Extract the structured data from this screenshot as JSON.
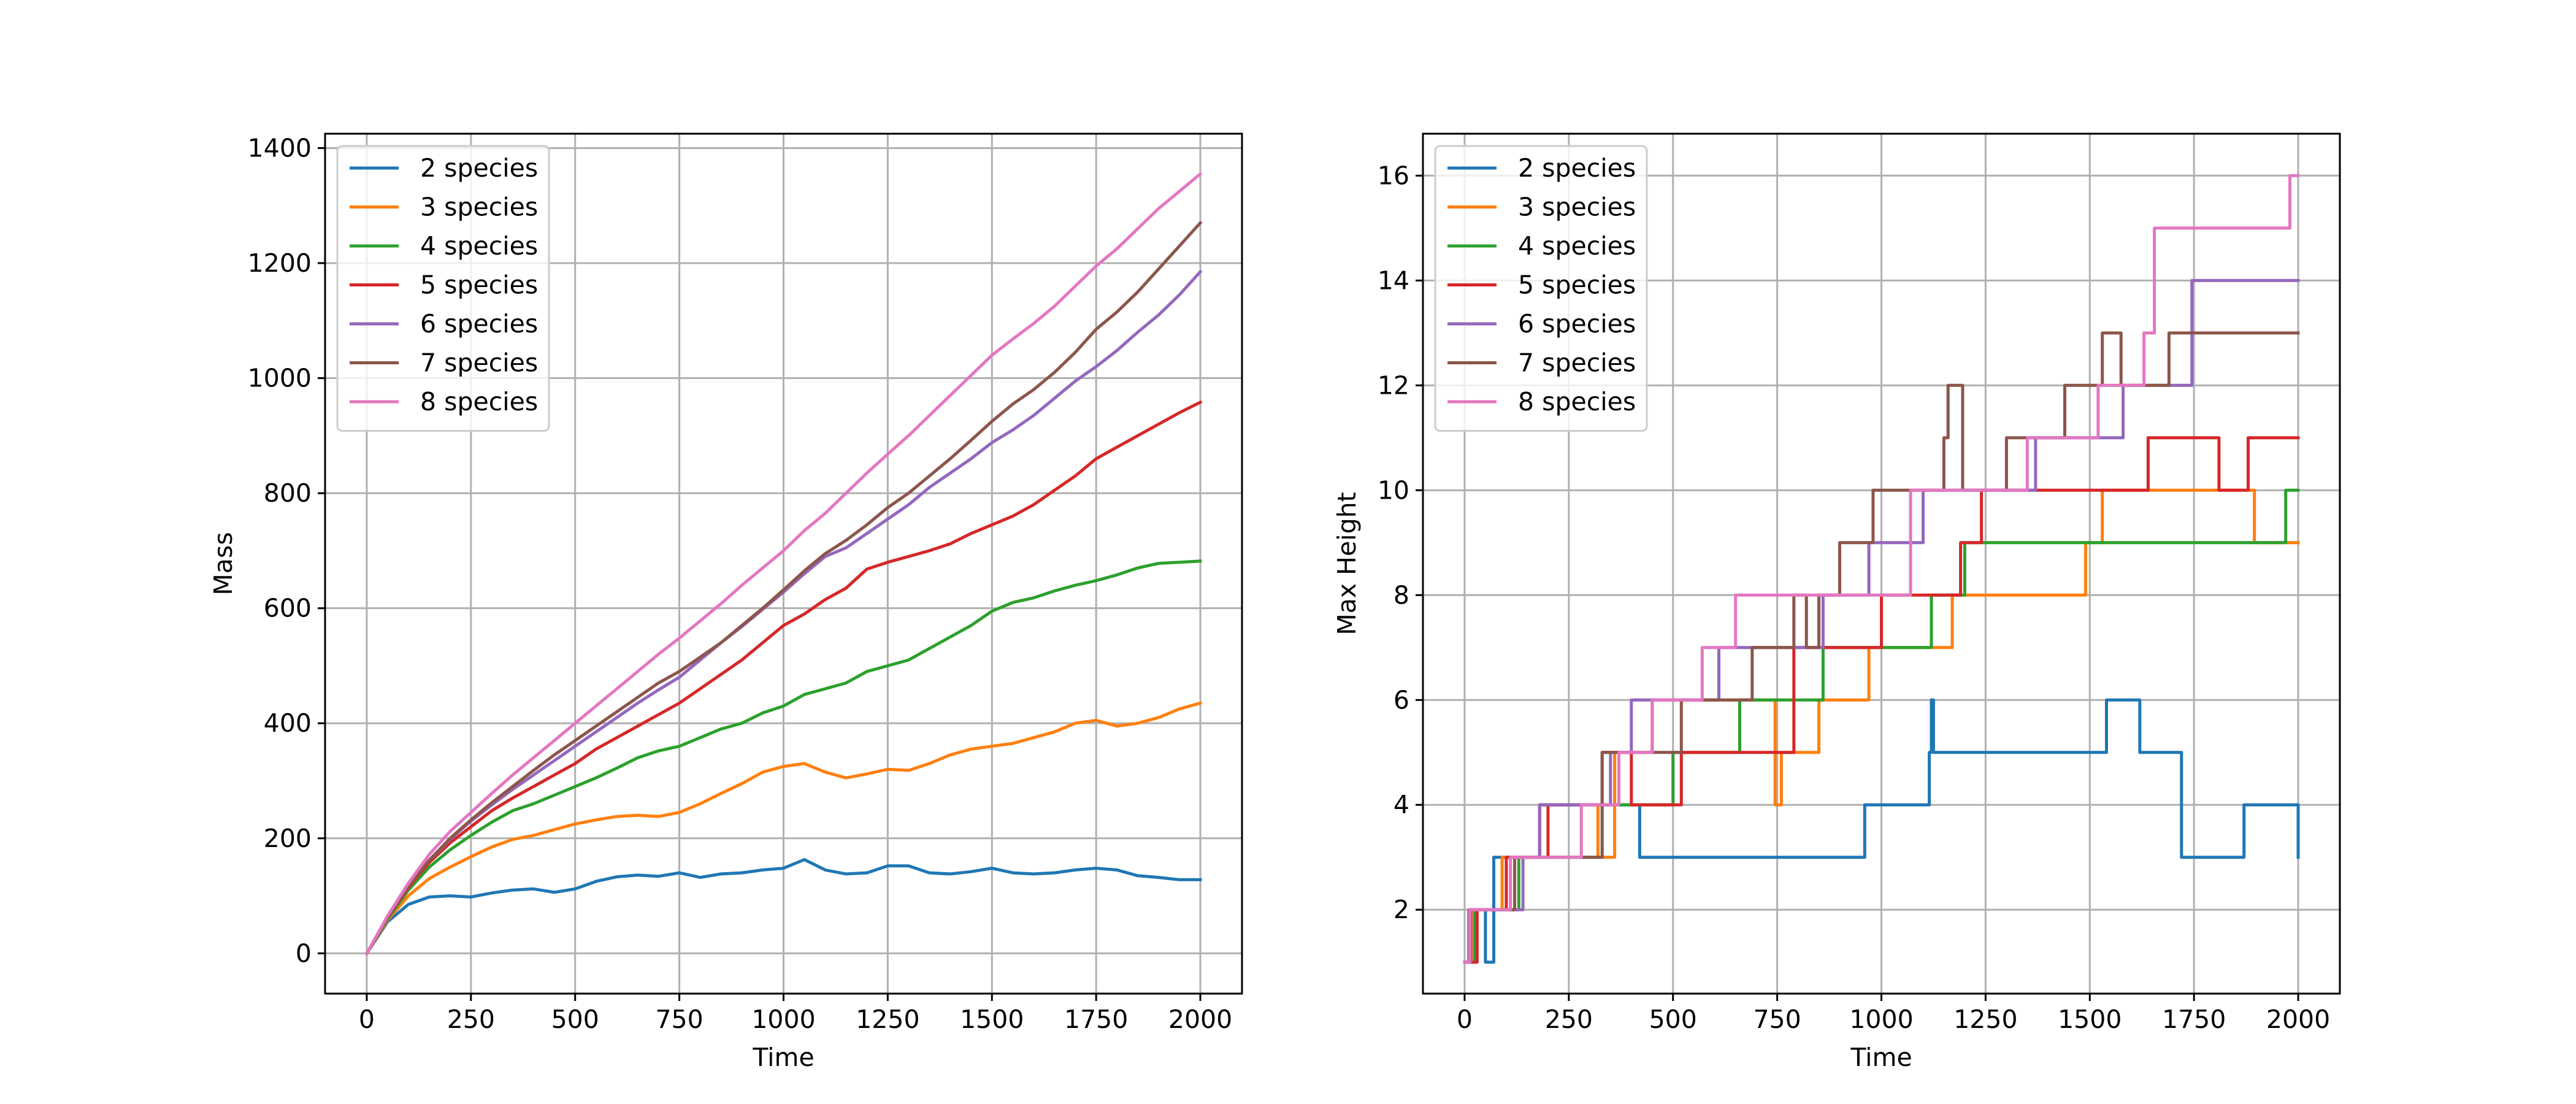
{
  "chart_data": [
    {
      "type": "line",
      "title": "",
      "xlabel": "Time",
      "ylabel": "Mass",
      "xlim": [
        -100,
        2100
      ],
      "ylim": [
        -70,
        1425
      ],
      "xticks": [
        0,
        250,
        500,
        750,
        1000,
        1250,
        1500,
        1750,
        2000
      ],
      "yticks": [
        0,
        200,
        400,
        600,
        800,
        1000,
        1200,
        1400
      ],
      "grid": true,
      "legend": "upper left",
      "series": [
        {
          "name": "2 species",
          "color": "#1f77b4",
          "x": [
            0,
            50,
            100,
            150,
            200,
            250,
            300,
            350,
            400,
            450,
            500,
            550,
            600,
            650,
            700,
            750,
            800,
            850,
            900,
            950,
            1000,
            1050,
            1100,
            1150,
            1200,
            1250,
            1300,
            1350,
            1400,
            1450,
            1500,
            1550,
            1600,
            1650,
            1700,
            1750,
            1800,
            1850,
            1900,
            1950,
            2000
          ],
          "y": [
            0,
            55,
            85,
            98,
            100,
            98,
            105,
            110,
            112,
            106,
            112,
            125,
            133,
            136,
            134,
            140,
            132,
            138,
            140,
            145,
            148,
            163,
            145,
            138,
            140,
            152,
            152,
            140,
            138,
            142,
            148,
            140,
            138,
            140,
            145,
            148,
            145,
            135,
            132,
            128,
            128
          ]
        },
        {
          "name": "3 species",
          "color": "#ff7f0e",
          "x": [
            0,
            50,
            100,
            150,
            200,
            250,
            300,
            350,
            400,
            450,
            500,
            550,
            600,
            650,
            700,
            750,
            800,
            850,
            900,
            950,
            1000,
            1050,
            1100,
            1150,
            1200,
            1250,
            1300,
            1350,
            1400,
            1450,
            1500,
            1550,
            1600,
            1650,
            1700,
            1750,
            1800,
            1850,
            1900,
            1950,
            2000
          ],
          "y": [
            0,
            58,
            100,
            130,
            150,
            168,
            185,
            198,
            205,
            215,
            225,
            232,
            238,
            240,
            238,
            245,
            260,
            278,
            295,
            315,
            325,
            330,
            315,
            305,
            312,
            320,
            318,
            330,
            345,
            355,
            360,
            365,
            375,
            385,
            400,
            405,
            395,
            400,
            410,
            425,
            435
          ]
        },
        {
          "name": "4 species",
          "color": "#2ca02c",
          "x": [
            0,
            50,
            100,
            150,
            200,
            250,
            300,
            350,
            400,
            450,
            500,
            550,
            600,
            650,
            700,
            750,
            800,
            850,
            900,
            950,
            1000,
            1050,
            1100,
            1150,
            1200,
            1250,
            1300,
            1350,
            1400,
            1450,
            1500,
            1550,
            1600,
            1650,
            1700,
            1750,
            1800,
            1850,
            1900,
            1950,
            2000
          ],
          "y": [
            0,
            60,
            110,
            150,
            180,
            205,
            228,
            248,
            260,
            275,
            290,
            305,
            322,
            340,
            352,
            360,
            375,
            390,
            400,
            418,
            430,
            450,
            460,
            470,
            490,
            500,
            510,
            530,
            550,
            570,
            595,
            610,
            618,
            630,
            640,
            648,
            658,
            670,
            678,
            680,
            682
          ]
        },
        {
          "name": "5 species",
          "color": "#d62728",
          "x": [
            0,
            50,
            100,
            150,
            200,
            250,
            300,
            350,
            400,
            450,
            500,
            550,
            600,
            650,
            700,
            750,
            800,
            850,
            900,
            950,
            1000,
            1050,
            1100,
            1150,
            1200,
            1250,
            1300,
            1350,
            1400,
            1450,
            1500,
            1550,
            1600,
            1650,
            1700,
            1750,
            1800,
            1850,
            1900,
            1950,
            2000
          ],
          "y": [
            0,
            62,
            115,
            158,
            192,
            220,
            248,
            270,
            290,
            310,
            330,
            355,
            375,
            395,
            415,
            435,
            460,
            485,
            510,
            540,
            570,
            590,
            615,
            635,
            668,
            680,
            690,
            700,
            712,
            730,
            745,
            760,
            780,
            805,
            830,
            860,
            880,
            900,
            920,
            940,
            958
          ]
        },
        {
          "name": "6 species",
          "color": "#9467bd",
          "x": [
            0,
            50,
            100,
            150,
            200,
            250,
            300,
            350,
            400,
            450,
            500,
            550,
            600,
            650,
            700,
            750,
            800,
            850,
            900,
            950,
            1000,
            1050,
            1100,
            1150,
            1200,
            1250,
            1300,
            1350,
            1400,
            1450,
            1500,
            1550,
            1600,
            1650,
            1700,
            1750,
            1800,
            1850,
            1900,
            1950,
            2000
          ],
          "y": [
            0,
            63,
            118,
            162,
            198,
            230,
            258,
            285,
            310,
            335,
            360,
            385,
            410,
            435,
            458,
            480,
            510,
            540,
            568,
            598,
            628,
            660,
            690,
            705,
            730,
            755,
            780,
            810,
            835,
            860,
            888,
            910,
            935,
            965,
            995,
            1020,
            1048,
            1080,
            1110,
            1145,
            1185
          ]
        },
        {
          "name": "7 species",
          "color": "#8c564b",
          "x": [
            0,
            50,
            100,
            150,
            200,
            250,
            300,
            350,
            400,
            450,
            500,
            550,
            600,
            650,
            700,
            750,
            800,
            850,
            900,
            950,
            1000,
            1050,
            1100,
            1150,
            1200,
            1250,
            1300,
            1350,
            1400,
            1450,
            1500,
            1550,
            1600,
            1650,
            1700,
            1750,
            1800,
            1850,
            1900,
            1950,
            2000
          ],
          "y": [
            0,
            63,
            118,
            162,
            200,
            232,
            262,
            290,
            318,
            345,
            370,
            395,
            420,
            445,
            470,
            490,
            515,
            540,
            570,
            600,
            632,
            665,
            695,
            718,
            745,
            775,
            800,
            830,
            860,
            892,
            925,
            955,
            980,
            1010,
            1045,
            1085,
            1115,
            1150,
            1190,
            1230,
            1270
          ]
        },
        {
          "name": "8 species",
          "color": "#e377c2",
          "x": [
            0,
            50,
            100,
            150,
            200,
            250,
            300,
            350,
            400,
            450,
            500,
            550,
            600,
            650,
            700,
            750,
            800,
            850,
            900,
            950,
            1000,
            1050,
            1100,
            1150,
            1200,
            1250,
            1300,
            1350,
            1400,
            1450,
            1500,
            1550,
            1600,
            1650,
            1700,
            1750,
            1800,
            1850,
            1900,
            1950,
            2000
          ],
          "y": [
            0,
            65,
            122,
            172,
            212,
            245,
            278,
            310,
            340,
            370,
            400,
            430,
            460,
            490,
            520,
            548,
            578,
            608,
            640,
            670,
            700,
            735,
            765,
            800,
            835,
            868,
            900,
            935,
            970,
            1005,
            1040,
            1068,
            1095,
            1125,
            1160,
            1195,
            1225,
            1260,
            1295,
            1325,
            1355
          ]
        }
      ]
    },
    {
      "type": "line",
      "title": "",
      "xlabel": "Time",
      "ylabel": "Max Height",
      "xlim": [
        -100,
        2100
      ],
      "ylim": [
        0.4,
        16.8
      ],
      "xticks": [
        0,
        250,
        500,
        750,
        1000,
        1250,
        1500,
        1750,
        2000
      ],
      "yticks": [
        2,
        4,
        6,
        8,
        10,
        12,
        14,
        16
      ],
      "grid": true,
      "legend": "upper left",
      "step": true,
      "series": [
        {
          "name": "2 species",
          "color": "#1f77b4",
          "x": [
            0,
            30,
            50,
            70,
            170,
            180,
            330,
            420,
            590,
            850,
            960,
            1115,
            1120,
            1125,
            1300,
            1540,
            1620,
            1720,
            1870,
            2000
          ],
          "y": [
            1,
            2,
            1,
            3,
            3,
            4,
            4,
            3,
            3,
            3,
            4,
            5,
            6,
            5,
            5,
            6,
            5,
            3,
            4,
            3
          ]
        },
        {
          "name": "3 species",
          "color": "#ff7f0e",
          "x": [
            0,
            20,
            60,
            90,
            160,
            180,
            290,
            320,
            360,
            450,
            670,
            745,
            760,
            850,
            970,
            1170,
            1300,
            1490,
            1530,
            1895,
            2000
          ],
          "y": [
            1,
            2,
            2,
            3,
            3,
            4,
            4,
            3,
            5,
            6,
            6,
            4,
            5,
            6,
            7,
            8,
            8,
            9,
            10,
            9,
            9
          ]
        },
        {
          "name": "4 species",
          "color": "#2ca02c",
          "x": [
            0,
            25,
            80,
            130,
            160,
            200,
            300,
            330,
            370,
            500,
            660,
            770,
            860,
            1000,
            1120,
            1200,
            1280,
            1430,
            1880,
            1970,
            2000
          ],
          "y": [
            1,
            2,
            2,
            3,
            3,
            3,
            3,
            4,
            4,
            5,
            6,
            6,
            7,
            7,
            8,
            9,
            9,
            9,
            9,
            10,
            10
          ]
        },
        {
          "name": "5 species",
          "color": "#d62728",
          "x": [
            0,
            30,
            100,
            170,
            200,
            260,
            330,
            400,
            520,
            660,
            790,
            1000,
            1190,
            1240,
            1390,
            1640,
            1810,
            1880,
            2000
          ],
          "y": [
            1,
            2,
            3,
            3,
            4,
            4,
            5,
            4,
            5,
            5,
            7,
            8,
            9,
            10,
            10,
            11,
            10,
            11,
            11
          ]
        },
        {
          "name": "6 species",
          "color": "#9467bd",
          "x": [
            0,
            15,
            80,
            140,
            180,
            230,
            350,
            400,
            460,
            610,
            720,
            860,
            970,
            1100,
            1180,
            1220,
            1370,
            1580,
            1745,
            2000
          ],
          "y": [
            1,
            2,
            2,
            3,
            4,
            4,
            5,
            6,
            6,
            7,
            7,
            8,
            9,
            10,
            10,
            10,
            11,
            12,
            14,
            14
          ]
        },
        {
          "name": "7 species",
          "color": "#8c564b",
          "x": [
            0,
            10,
            85,
            120,
            170,
            250,
            305,
            330,
            380,
            520,
            690,
            780,
            790,
            820,
            850,
            900,
            980,
            1150,
            1160,
            1195,
            1300,
            1440,
            1530,
            1575,
            1690,
            2000
          ],
          "y": [
            1,
            2,
            2,
            3,
            3,
            3,
            3,
            5,
            5,
            6,
            7,
            7,
            8,
            7,
            8,
            9,
            10,
            11,
            12,
            10,
            11,
            12,
            13,
            12,
            13,
            13
          ]
        },
        {
          "name": "8 species",
          "color": "#e377c2",
          "x": [
            0,
            12,
            95,
            110,
            150,
            230,
            280,
            370,
            450,
            570,
            650,
            770,
            870,
            1070,
            1300,
            1350,
            1520,
            1570,
            1630,
            1655,
            1790,
            1980,
            2000
          ],
          "y": [
            1,
            2,
            2,
            3,
            3,
            3,
            4,
            5,
            6,
            7,
            8,
            8,
            8,
            10,
            10,
            11,
            12,
            12,
            13,
            15,
            15,
            16,
            16
          ]
        }
      ]
    }
  ]
}
